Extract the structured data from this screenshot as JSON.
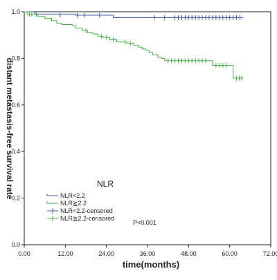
{
  "chart_data": {
    "type": "line",
    "subtype": "kaplan-meier-step",
    "xlabel": "time(months)",
    "ylabel": "distant metastasis-free survival rate",
    "xlim": [
      0,
      72
    ],
    "ylim": [
      0,
      1.0
    ],
    "xticks": [
      "0.00",
      "12.00",
      "24.00",
      "36.00",
      "48.00",
      "60.00",
      "72.00"
    ],
    "yticks": [
      "0.0",
      "0.2",
      "0.4",
      "0.6",
      "0.8",
      "1.0"
    ],
    "grid": false,
    "legend_title": "NLR",
    "legend_placement": "bottom-left",
    "annotation": "P<0.001",
    "legend": [
      {
        "label": "NLR<2.2",
        "color": "#3b5ba8",
        "kind": "line"
      },
      {
        "label": "NLR≧2.2",
        "color": "#41b43f",
        "kind": "line"
      },
      {
        "label": "NLR<2.2-censored",
        "color": "#3b5ba8",
        "kind": "censor"
      },
      {
        "label": "NLR≧2.2-censored",
        "color": "#41b43f",
        "kind": "censor"
      }
    ],
    "series": [
      {
        "name": "NLR<2.2",
        "color": "#3b5ba8",
        "steps": [
          [
            0,
            1.0
          ],
          [
            3,
            0.99
          ],
          [
            15,
            0.985
          ],
          [
            26,
            0.975
          ],
          [
            64,
            0.975
          ]
        ],
        "censored": [
          [
            3.5,
            0.99
          ],
          [
            10.5,
            0.985
          ],
          [
            15.5,
            0.985
          ],
          [
            17.5,
            0.985
          ],
          [
            22,
            0.985
          ],
          [
            38,
            0.975
          ],
          [
            41,
            0.975
          ],
          [
            44,
            0.975
          ],
          [
            45,
            0.975
          ],
          [
            46,
            0.975
          ],
          [
            47,
            0.975
          ],
          [
            48,
            0.975
          ],
          [
            49,
            0.975
          ],
          [
            50,
            0.975
          ],
          [
            51,
            0.975
          ],
          [
            52,
            0.975
          ],
          [
            53,
            0.975
          ],
          [
            54,
            0.975
          ],
          [
            55,
            0.975
          ],
          [
            56,
            0.975
          ],
          [
            57,
            0.975
          ],
          [
            58,
            0.975
          ],
          [
            59,
            0.975
          ],
          [
            60,
            0.975
          ],
          [
            61,
            0.975
          ],
          [
            62,
            0.975
          ],
          [
            63,
            0.975
          ]
        ]
      },
      {
        "name": "NLR≧2.2",
        "color": "#41b43f",
        "steps": [
          [
            0,
            1.0
          ],
          [
            0.8,
            0.99
          ],
          [
            4,
            0.98
          ],
          [
            6,
            0.972
          ],
          [
            8,
            0.962
          ],
          [
            9.5,
            0.95
          ],
          [
            11,
            0.945
          ],
          [
            14,
            0.94
          ],
          [
            15,
            0.93
          ],
          [
            17,
            0.92
          ],
          [
            18.5,
            0.91
          ],
          [
            20,
            0.905
          ],
          [
            21.5,
            0.895
          ],
          [
            23,
            0.89
          ],
          [
            25,
            0.88
          ],
          [
            27,
            0.87
          ],
          [
            30,
            0.865
          ],
          [
            32,
            0.855
          ],
          [
            33.5,
            0.848
          ],
          [
            34.5,
            0.84
          ],
          [
            35.5,
            0.835
          ],
          [
            36.5,
            0.825
          ],
          [
            37.5,
            0.815
          ],
          [
            39,
            0.805
          ],
          [
            40,
            0.8
          ],
          [
            41,
            0.79
          ],
          [
            54,
            0.79
          ],
          [
            55,
            0.77
          ],
          [
            60,
            0.77
          ],
          [
            61,
            0.715
          ],
          [
            64,
            0.715
          ]
        ],
        "censored": [
          [
            1.5,
            0.99
          ],
          [
            2.2,
            0.99
          ],
          [
            18,
            0.92
          ],
          [
            22.5,
            0.895
          ],
          [
            24,
            0.89
          ],
          [
            26,
            0.88
          ],
          [
            29.5,
            0.87
          ],
          [
            31,
            0.865
          ],
          [
            42,
            0.79
          ],
          [
            43,
            0.79
          ],
          [
            44,
            0.79
          ],
          [
            45,
            0.79
          ],
          [
            46,
            0.79
          ],
          [
            47,
            0.79
          ],
          [
            48,
            0.79
          ],
          [
            49,
            0.79
          ],
          [
            50,
            0.79
          ],
          [
            51,
            0.79
          ],
          [
            52,
            0.79
          ],
          [
            53,
            0.79
          ],
          [
            56,
            0.77
          ],
          [
            57,
            0.77
          ],
          [
            58,
            0.77
          ],
          [
            59,
            0.77
          ],
          [
            62,
            0.715
          ],
          [
            62.8,
            0.715
          ],
          [
            63.5,
            0.715
          ]
        ]
      }
    ]
  }
}
